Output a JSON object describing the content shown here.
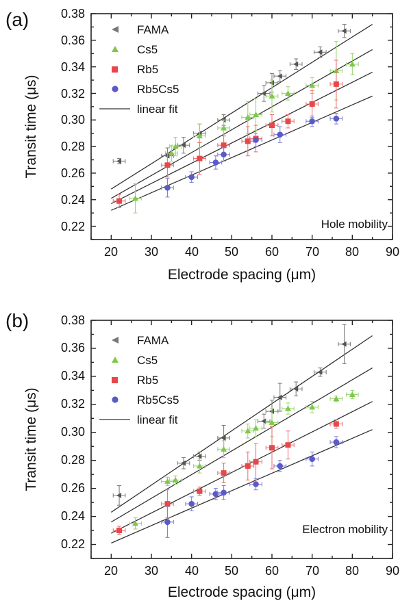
{
  "colors": {
    "FAMA": "#555555",
    "Cs5": "#7ec84a",
    "Rb5": "#e8474a",
    "Rb5Cs5": "#5a5ac8",
    "fit": "#333333"
  },
  "chart_data": [
    {
      "type": "scatter",
      "panel": "(a)",
      "annotation": "Hole mobility",
      "xlabel": "Electrode spacing (μm)",
      "ylabel": "Transit time (μs)",
      "xlim": [
        15,
        90
      ],
      "ylim": [
        0.21,
        0.38
      ],
      "xticks": [
        "20",
        "30",
        "40",
        "50",
        "60",
        "70",
        "80",
        "90"
      ],
      "yticks": [
        "0.22",
        "0.24",
        "0.26",
        "0.28",
        "0.30",
        "0.32",
        "0.34",
        "0.36",
        "0.38"
      ],
      "legend": [
        "FAMA",
        "Cs5",
        "Rb5",
        "Rb5Cs5",
        "linear fit"
      ],
      "legend_position": "top-left",
      "series": [
        {
          "name": "FAMA",
          "marker": "triangle-left",
          "points": [
            [
              22,
              0.269,
              0.002,
              1.5
            ],
            [
              34,
              0.273,
              0.006,
              1.5
            ],
            [
              38,
              0.281,
              0.006,
              1.5
            ],
            [
              42,
              0.29,
              0.007,
              1.5
            ],
            [
              48,
              0.3,
              0.004,
              1.5
            ],
            [
              58,
              0.32,
              0.006,
              1.5
            ],
            [
              60,
              0.328,
              0.007,
              1.5
            ],
            [
              62,
              0.333,
              0.004,
              1.5
            ],
            [
              66,
              0.342,
              0.004,
              1.5
            ],
            [
              72,
              0.351,
              0.004,
              1.5
            ],
            [
              78,
              0.367,
              0.005,
              1.5
            ]
          ],
          "fit": [
            [
              20,
              0.248
            ],
            [
              85,
              0.372
            ]
          ]
        },
        {
          "name": "Cs5",
          "marker": "triangle-up",
          "points": [
            [
              26,
              0.241,
              0.011,
              1.5
            ],
            [
              35,
              0.275,
              0.006,
              1.5
            ],
            [
              36,
              0.28,
              0.007,
              1.5
            ],
            [
              42,
              0.288,
              0.009,
              1.5
            ],
            [
              48,
              0.294,
              0.006,
              1.5
            ],
            [
              54,
              0.302,
              0.012,
              1.5
            ],
            [
              56,
              0.304,
              0.012,
              1.5
            ],
            [
              60,
              0.318,
              0.012,
              1.5
            ],
            [
              64,
              0.32,
              0.005,
              1.5
            ],
            [
              70,
              0.326,
              0.006,
              1.5
            ],
            [
              76,
              0.337,
              0.022,
              1.5
            ],
            [
              80,
              0.342,
              0.008,
              1.5
            ]
          ],
          "fit": [
            [
              20,
              0.241
            ],
            [
              85,
              0.353
            ]
          ]
        },
        {
          "name": "Rb5",
          "marker": "square",
          "points": [
            [
              22,
              0.239,
              0.005,
              1.5
            ],
            [
              34,
              0.266,
              0.009,
              1.5
            ],
            [
              42,
              0.271,
              0.012,
              1.5
            ],
            [
              48,
              0.281,
              0.007,
              1.5
            ],
            [
              54,
              0.284,
              0.011,
              1.5
            ],
            [
              56,
              0.286,
              0.01,
              1.5
            ],
            [
              60,
              0.296,
              0.008,
              1.5
            ],
            [
              64,
              0.299,
              0.005,
              1.5
            ],
            [
              70,
              0.312,
              0.01,
              1.5
            ],
            [
              76,
              0.327,
              0.018,
              1.5
            ]
          ],
          "fit": [
            [
              20,
              0.237
            ],
            [
              85,
              0.336
            ]
          ]
        },
        {
          "name": "Rb5Cs5",
          "marker": "circle",
          "points": [
            [
              34,
              0.249,
              0.007,
              1.5
            ],
            [
              40,
              0.257,
              0.004,
              1.5
            ],
            [
              46,
              0.268,
              0.005,
              1.5
            ],
            [
              48,
              0.274,
              0.005,
              1.5
            ],
            [
              56,
              0.285,
              0.005,
              1.5
            ],
            [
              62,
              0.289,
              0.006,
              1.5
            ],
            [
              70,
              0.299,
              0.004,
              1.5
            ],
            [
              76,
              0.301,
              0.004,
              1.5
            ]
          ],
          "fit": [
            [
              20,
              0.232
            ],
            [
              85,
              0.318
            ]
          ]
        }
      ]
    },
    {
      "type": "scatter",
      "panel": "(b)",
      "annotation": "Electron mobility",
      "xlabel": "Electrode spacing (μm)",
      "ylabel": "Transit time (μs)",
      "xlim": [
        15,
        90
      ],
      "ylim": [
        0.21,
        0.38
      ],
      "xticks": [
        "20",
        "30",
        "40",
        "50",
        "60",
        "70",
        "80",
        "90"
      ],
      "yticks": [
        "0.22",
        "0.24",
        "0.26",
        "0.28",
        "0.30",
        "0.32",
        "0.34",
        "0.36",
        "0.38"
      ],
      "legend": [
        "FAMA",
        "Cs5",
        "Rb5",
        "Rb5Cs5",
        "linear fit"
      ],
      "legend_position": "top-left",
      "series": [
        {
          "name": "FAMA",
          "marker": "triangle-left",
          "points": [
            [
              22,
              0.255,
              0.007,
              1.5
            ],
            [
              38,
              0.278,
              0.004,
              1.5
            ],
            [
              42,
              0.283,
              0.003,
              1.5
            ],
            [
              48,
              0.296,
              0.009,
              1.5
            ],
            [
              58,
              0.308,
              0.005,
              1.5
            ],
            [
              60,
              0.315,
              0.008,
              1.5
            ],
            [
              62,
              0.325,
              0.01,
              1.5
            ],
            [
              66,
              0.331,
              0.005,
              1.5
            ],
            [
              72,
              0.343,
              0.003,
              1.5
            ],
            [
              78,
              0.363,
              0.014,
              1.5
            ]
          ],
          "fit": [
            [
              20,
              0.243
            ],
            [
              85,
              0.369
            ]
          ]
        },
        {
          "name": "Cs5",
          "marker": "triangle-up",
          "points": [
            [
              26,
              0.235,
              0.004,
              1.5
            ],
            [
              34,
              0.265,
              0.003,
              1.5
            ],
            [
              36,
              0.266,
              0.003,
              1.5
            ],
            [
              42,
              0.276,
              0.005,
              1.5
            ],
            [
              48,
              0.288,
              0.006,
              1.5
            ],
            [
              54,
              0.301,
              0.005,
              1.5
            ],
            [
              56,
              0.303,
              0.006,
              1.5
            ],
            [
              60,
              0.307,
              0.01,
              1.5
            ],
            [
              64,
              0.317,
              0.004,
              1.5
            ],
            [
              70,
              0.318,
              0.004,
              1.5
            ],
            [
              76,
              0.324,
              0.002,
              1.5
            ],
            [
              80,
              0.327,
              0.003,
              1.5
            ]
          ],
          "fit": [
            [
              20,
              0.236
            ],
            [
              85,
              0.346
            ]
          ]
        },
        {
          "name": "Rb5",
          "marker": "square",
          "points": [
            [
              22,
              0.23,
              0.003,
              1.5
            ],
            [
              34,
              0.249,
              0.01,
              1.5
            ],
            [
              42,
              0.258,
              0.003,
              1.5
            ],
            [
              48,
              0.271,
              0.007,
              1.5
            ],
            [
              54,
              0.276,
              0.01,
              1.5
            ],
            [
              56,
              0.279,
              0.013,
              1.5
            ],
            [
              60,
              0.289,
              0.015,
              1.5
            ],
            [
              64,
              0.291,
              0.01,
              1.5
            ],
            [
              76,
              0.306,
              0.003,
              1.5
            ]
          ],
          "fit": [
            [
              20,
              0.228
            ],
            [
              85,
              0.322
            ]
          ]
        },
        {
          "name": "Rb5Cs5",
          "marker": "circle",
          "points": [
            [
              34,
              0.236,
              0.011,
              1.5
            ],
            [
              40,
              0.249,
              0.005,
              1.5
            ],
            [
              46,
              0.256,
              0.004,
              1.5
            ],
            [
              48,
              0.257,
              0.005,
              1.5
            ],
            [
              56,
              0.263,
              0.004,
              1.5
            ],
            [
              62,
              0.276,
              0.004,
              1.5
            ],
            [
              70,
              0.281,
              0.005,
              1.5
            ],
            [
              76,
              0.293,
              0.004,
              1.5
            ]
          ],
          "fit": [
            [
              20,
              0.221
            ],
            [
              85,
              0.302
            ]
          ]
        }
      ]
    }
  ]
}
